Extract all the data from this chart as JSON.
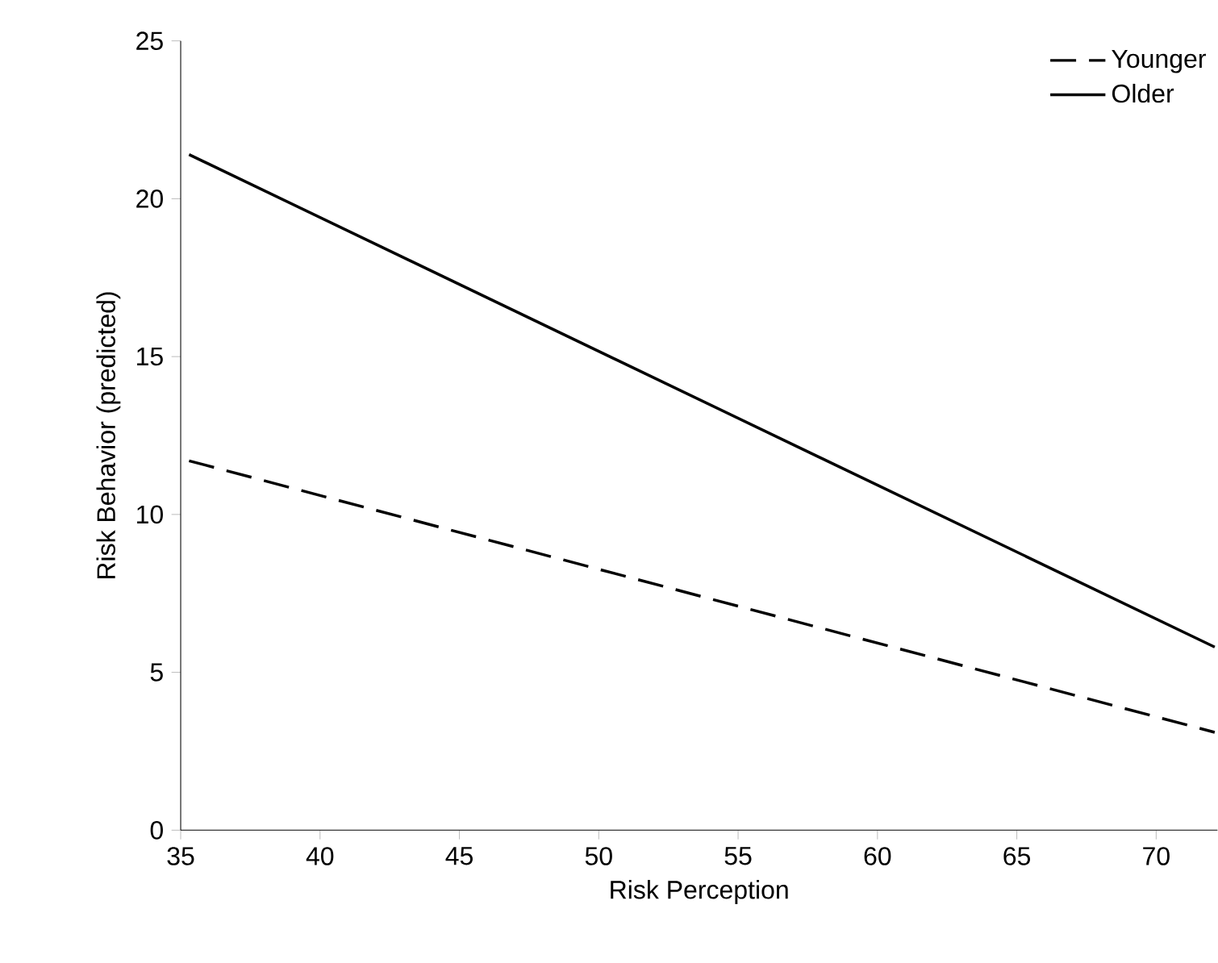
{
  "chart_data": {
    "type": "line",
    "xlabel": "Risk Perception",
    "ylabel": "Risk Behavior (predicted)",
    "xlim": [
      35,
      72.2
    ],
    "ylim": [
      0,
      25
    ],
    "xticks": [
      35,
      40,
      45,
      50,
      55,
      60,
      65,
      70
    ],
    "yticks": [
      0,
      5,
      10,
      15,
      20,
      25
    ],
    "grid": false,
    "x": [
      35.3,
      72.1
    ],
    "legend": "top right",
    "marker": "none",
    "series": [
      {
        "name": "Younger",
        "color": "#000000",
        "line_style": "dashed",
        "values": [
          11.7,
          3.1
        ]
      },
      {
        "name": "Older",
        "color": "#000000",
        "line_style": "solid",
        "values": [
          21.4,
          5.8
        ]
      }
    ]
  }
}
